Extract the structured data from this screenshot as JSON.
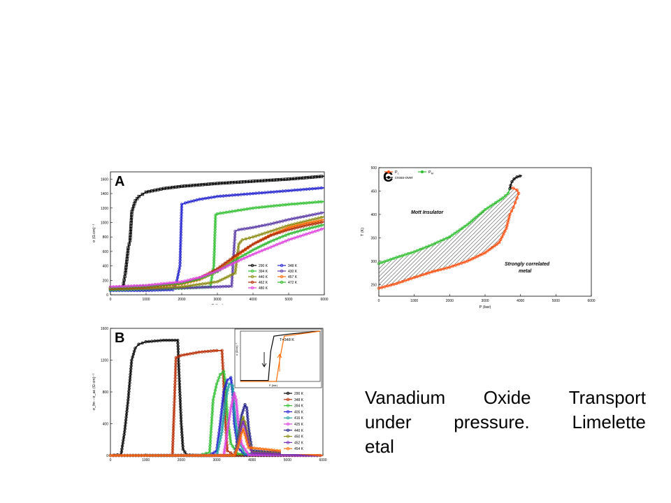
{
  "caption": {
    "line1": "Vanadium Oxide Transport",
    "line2": "under pressure. Limelette",
    "line3": "etal"
  },
  "chart_data": [
    {
      "id": "A",
      "type": "line",
      "panel_label": "A",
      "xlabel": "P (bar)",
      "ylabel": "σ (Ω.cm)⁻¹",
      "xlim": [
        0,
        6000
      ],
      "ylim": [
        0,
        1700
      ],
      "xticks": [
        0,
        1000,
        2000,
        3000,
        4000,
        5000,
        6000
      ],
      "yticks": [
        0,
        200,
        400,
        600,
        800,
        1000,
        1200,
        1400,
        1600
      ],
      "legend_position": "bottom-right",
      "series": [
        {
          "name": "290 K",
          "color": "#000000",
          "marker": "square",
          "x": [
            0,
            200,
            350,
            420,
            500,
            550,
            600,
            700,
            800,
            1000,
            1500,
            2000,
            3000,
            4000,
            5000,
            6000
          ],
          "y": [
            80,
            90,
            110,
            300,
            650,
            750,
            1150,
            1300,
            1360,
            1420,
            1470,
            1500,
            1540,
            1570,
            1600,
            1640
          ]
        },
        {
          "name": "348 K",
          "color": "#2020d0",
          "marker": "circle",
          "x": [
            0,
            1000,
            1750,
            1850,
            1950,
            2000,
            2100,
            2500,
            3000,
            4000,
            5000,
            6000
          ],
          "y": [
            60,
            60,
            70,
            160,
            400,
            1250,
            1270,
            1320,
            1360,
            1400,
            1440,
            1480
          ]
        },
        {
          "name": "394 K",
          "color": "#30c030",
          "marker": "triangle-down",
          "x": [
            0,
            1000,
            2000,
            2800,
            2900,
            2950,
            3000,
            3500,
            4000,
            5000,
            6000
          ],
          "y": [
            70,
            80,
            90,
            110,
            400,
            1100,
            1120,
            1160,
            1200,
            1250,
            1290
          ]
        },
        {
          "name": "430 K",
          "color": "#5b3aa8",
          "marker": "diamond",
          "x": [
            0,
            1000,
            2000,
            3000,
            3400,
            3500,
            3600,
            4000,
            4500,
            5000,
            5500,
            6000
          ],
          "y": [
            80,
            85,
            95,
            110,
            120,
            880,
            900,
            930,
            980,
            1040,
            1090,
            1140
          ]
        },
        {
          "name": "440 K",
          "color": "#8a8a10",
          "marker": "triangle-left",
          "x": [
            0,
            1000,
            2000,
            3000,
            3500,
            3600,
            3700,
            4000,
            4500,
            5000,
            5500,
            6000
          ],
          "y": [
            80,
            90,
            110,
            180,
            300,
            700,
            760,
            800,
            880,
            960,
            1020,
            1080
          ]
        },
        {
          "name": "457 K",
          "color": "#ff6a00",
          "marker": "triangle-right",
          "x": [
            0,
            1000,
            2000,
            2500,
            3000,
            3500,
            4000,
            4500,
            5000,
            5500,
            6000
          ],
          "y": [
            90,
            110,
            150,
            210,
            330,
            520,
            700,
            830,
            930,
            990,
            1040
          ]
        },
        {
          "name": "462 K",
          "color": "#b02a00",
          "marker": "circle",
          "x": [
            0,
            1000,
            2000,
            2500,
            3000,
            3500,
            4000,
            4500,
            5000,
            5500,
            6000
          ],
          "y": [
            90,
            110,
            160,
            230,
            360,
            540,
            700,
            820,
            900,
            960,
            1010
          ]
        },
        {
          "name": "472 K",
          "color": "#2cb82c",
          "marker": "star",
          "x": [
            0,
            1000,
            2000,
            2500,
            3000,
            3500,
            4000,
            4500,
            5000,
            5500,
            6000
          ],
          "y": [
            100,
            120,
            160,
            220,
            320,
            480,
            620,
            740,
            840,
            910,
            970
          ]
        },
        {
          "name": "480 K",
          "color": "#e040e0",
          "marker": "circle",
          "x": [
            0,
            1000,
            2000,
            2500,
            3000,
            3500,
            4000,
            4500,
            5000,
            5500,
            6000
          ],
          "y": [
            110,
            130,
            180,
            240,
            330,
            450,
            560,
            660,
            760,
            840,
            920
          ]
        }
      ]
    },
    {
      "id": "B",
      "type": "line",
      "panel_label": "B",
      "xlabel": "",
      "ylabel": "σ_fm - σ_ac (Ω cm)⁻¹",
      "xlim": [
        0,
        6000
      ],
      "ylim": [
        0,
        1600
      ],
      "xticks": [
        0,
        1000,
        2000,
        3000,
        4000,
        5000,
        6000
      ],
      "yticks": [
        0,
        400,
        800,
        1200,
        1600
      ],
      "legend_position": "bottom-right",
      "series": [
        {
          "name": "290 K",
          "color": "#000000",
          "x": [
            0,
            300,
            400,
            500,
            600,
            700,
            800,
            1000,
            1500,
            1900,
            1950,
            2000,
            2050,
            2150,
            2500,
            6000
          ],
          "y": [
            0,
            10,
            300,
            700,
            1200,
            1350,
            1400,
            1430,
            1450,
            1450,
            900,
            400,
            80,
            10,
            0,
            0
          ]
        },
        {
          "name": "348 K",
          "color": "#b82a00",
          "x": [
            0,
            1750,
            1800,
            1850,
            2000,
            2500,
            3000,
            3150,
            3200,
            3250,
            3300,
            3500,
            6000
          ],
          "y": [
            0,
            0,
            600,
            1230,
            1260,
            1300,
            1320,
            1320,
            900,
            400,
            60,
            5,
            0
          ]
        },
        {
          "name": "394 K",
          "color": "#30c030",
          "x": [
            0,
            2500,
            2800,
            2900,
            3000,
            3100,
            3200,
            3250,
            3300,
            3400,
            3600,
            6000
          ],
          "y": [
            0,
            0,
            40,
            700,
            900,
            1020,
            1060,
            900,
            500,
            150,
            20,
            0
          ]
        },
        {
          "name": "405 K",
          "color": "#2020d0",
          "x": [
            0,
            2800,
            3000,
            3100,
            3200,
            3300,
            3400,
            3450,
            3500,
            3600,
            3800,
            6000
          ],
          "y": [
            0,
            0,
            60,
            400,
            800,
            950,
            980,
            800,
            400,
            100,
            10,
            0
          ]
        },
        {
          "name": "416 K",
          "color": "#20a0a0",
          "x": [
            0,
            3000,
            3150,
            3250,
            3350,
            3450,
            3500,
            3600,
            3800,
            6000
          ],
          "y": [
            0,
            0,
            300,
            700,
            900,
            880,
            600,
            200,
            20,
            0
          ]
        },
        {
          "name": "425 K",
          "color": "#e040e0",
          "x": [
            0,
            3200,
            3300,
            3400,
            3500,
            3550,
            3600,
            3700,
            3900,
            6000
          ],
          "y": [
            0,
            0,
            300,
            600,
            780,
            700,
            450,
            150,
            10,
            0
          ]
        },
        {
          "name": "440 K",
          "color": "#20208a",
          "x": [
            0,
            3500,
            3600,
            3700,
            3800,
            3850,
            3900,
            4000,
            6000
          ],
          "y": [
            0,
            0,
            200,
            500,
            640,
            600,
            350,
            60,
            0
          ]
        },
        {
          "name": "450 K",
          "color": "#8a8a10",
          "x": [
            0,
            3500,
            3600,
            3700,
            3750,
            3800,
            3900,
            4000,
            6000
          ],
          "y": [
            0,
            0,
            150,
            400,
            480,
            420,
            200,
            40,
            0
          ]
        },
        {
          "name": "452 K",
          "color": "#7a2ab8",
          "x": [
            0,
            3500,
            3600,
            3700,
            3750,
            3800,
            3900,
            4000,
            6000
          ],
          "y": [
            0,
            0,
            120,
            350,
            420,
            360,
            160,
            30,
            0
          ]
        },
        {
          "name": "454 K",
          "color": "#ff6a00",
          "x": [
            0,
            3500,
            3600,
            3700,
            3750,
            3800,
            3900,
            6000
          ],
          "y": [
            0,
            0,
            100,
            280,
            330,
            260,
            100,
            0
          ]
        }
      ],
      "inset": {
        "xlabel": "P (bar)",
        "ylabel": "σ (Ωcm)⁻¹",
        "annotation": "T=348 K",
        "series": [
          {
            "color": "#000000",
            "x": [
              0,
              0.25,
              0.35,
              0.38,
              0.42,
              0.6,
              1.0
            ],
            "y": [
              0.02,
              0.02,
              0.02,
              0.6,
              0.9,
              0.94,
              1.0
            ]
          },
          {
            "color": "#ff6a00",
            "x": [
              0,
              0.45,
              0.5,
              0.55,
              1.0
            ],
            "y": [
              0.0,
              0.0,
              0.5,
              0.9,
              1.0
            ]
          }
        ]
      }
    },
    {
      "id": "C",
      "type": "line",
      "panel_label": "C",
      "xlabel": "P (bar)",
      "ylabel": "T (K)",
      "xlim": [
        0,
        6000
      ],
      "ylim": [
        225,
        500
      ],
      "xticks": [
        0,
        1000,
        2000,
        3000,
        4000,
        5000,
        6000
      ],
      "yticks": [
        250,
        300,
        350,
        400,
        450,
        500
      ],
      "legend_position": "top-left",
      "annotations": [
        "Mott Insulator",
        "Strongly correlated metal"
      ],
      "series": [
        {
          "name": "P",
          "subscript": "c",
          "color": "#ff5010",
          "x": [
            0,
            500,
            1000,
            1500,
            2000,
            2500,
            3000,
            3400,
            3600,
            3700,
            3800,
            3850,
            3900,
            3950,
            3900,
            3800,
            3700
          ],
          "y": [
            242,
            252,
            265,
            277,
            287,
            300,
            318,
            340,
            370,
            400,
            415,
            425,
            435,
            445,
            452,
            456,
            458
          ]
        },
        {
          "name": "P",
          "subscript": "M",
          "color": "#30c030",
          "x": [
            0,
            500,
            1000,
            1500,
            2000,
            2500,
            3000,
            3300,
            3500,
            3650,
            3700
          ],
          "y": [
            295,
            308,
            320,
            335,
            352,
            378,
            410,
            425,
            435,
            445,
            455
          ]
        },
        {
          "name": "cross-over",
          "color": "#000000",
          "x": [
            3700,
            3720,
            3760,
            3820,
            3900,
            3980,
            4040
          ],
          "y": [
            455,
            462,
            470,
            476,
            480,
            482,
            483
          ]
        }
      ]
    }
  ]
}
